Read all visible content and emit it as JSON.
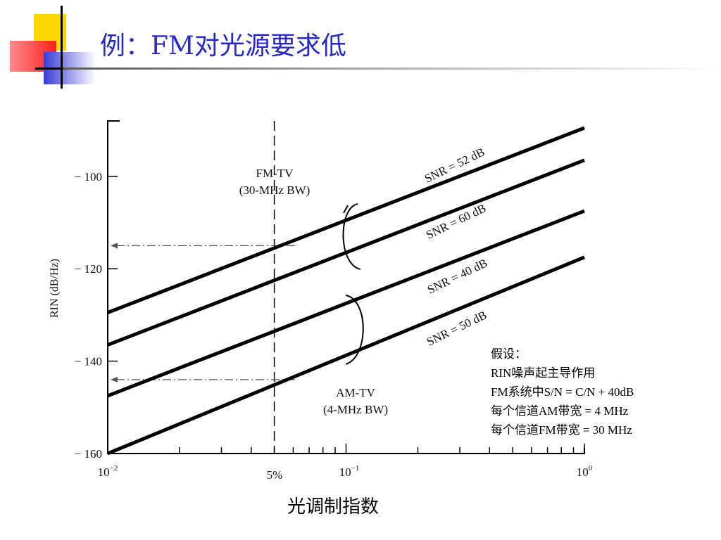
{
  "slide": {
    "title": "例：FM对光源要求低"
  },
  "assumptions": {
    "heading": "假设：",
    "lines": [
      "RIN噪声起主导作用",
      "FM系统中S/N = C/N + 40dB",
      "每个信道AM带宽 = 4 MHz",
      "每个信道FM带宽 = 30 MHz"
    ]
  },
  "chart_data": {
    "type": "line",
    "xscale": "log",
    "xlabel": "光调制指数",
    "ylabel": "RIN (dB/Hz)",
    "xlim": [
      0.01,
      1
    ],
    "ylim": [
      -160,
      -88
    ],
    "x_tick_labels": [
      {
        "x": 0.01,
        "base": "10",
        "exp": "−2"
      },
      {
        "x": 0.1,
        "base": "10",
        "exp": "−1"
      },
      {
        "x": 1,
        "base": "10",
        "exp": "0"
      }
    ],
    "x_marker_label": {
      "x": 0.05,
      "text": "5%"
    },
    "y_ticks": [
      {
        "value": -100,
        "label": "− 100"
      },
      {
        "value": -120,
        "label": "− 120"
      },
      {
        "value": -140,
        "label": "− 140"
      },
      {
        "value": -160,
        "label": "− 160"
      }
    ],
    "series": [
      {
        "name": "SNR = 52 dB",
        "x": [
          0.01,
          1
        ],
        "y": [
          -129.5,
          -89.5
        ]
      },
      {
        "name": "SNR = 60 dB",
        "x": [
          0.01,
          1
        ],
        "y": [
          -136.5,
          -96.5
        ]
      },
      {
        "name": "SNR = 40 dB",
        "x": [
          0.01,
          1
        ],
        "y": [
          -147.5,
          -107.5
        ]
      },
      {
        "name": "SNR = 50 dB",
        "x": [
          0.01,
          1
        ],
        "y": [
          -160,
          -117.5
        ]
      }
    ],
    "vertical_reference": {
      "x": 0.05
    },
    "horizontal_references": [
      {
        "y": -115,
        "x_end": 0.05
      },
      {
        "y": -144,
        "x_end": 0.05
      }
    ],
    "annotations": [
      {
        "lines": [
          "FM-TV",
          "(30-MHz BW)"
        ]
      },
      {
        "lines": [
          "AM-TV",
          "(4-MHz BW)"
        ]
      }
    ]
  }
}
